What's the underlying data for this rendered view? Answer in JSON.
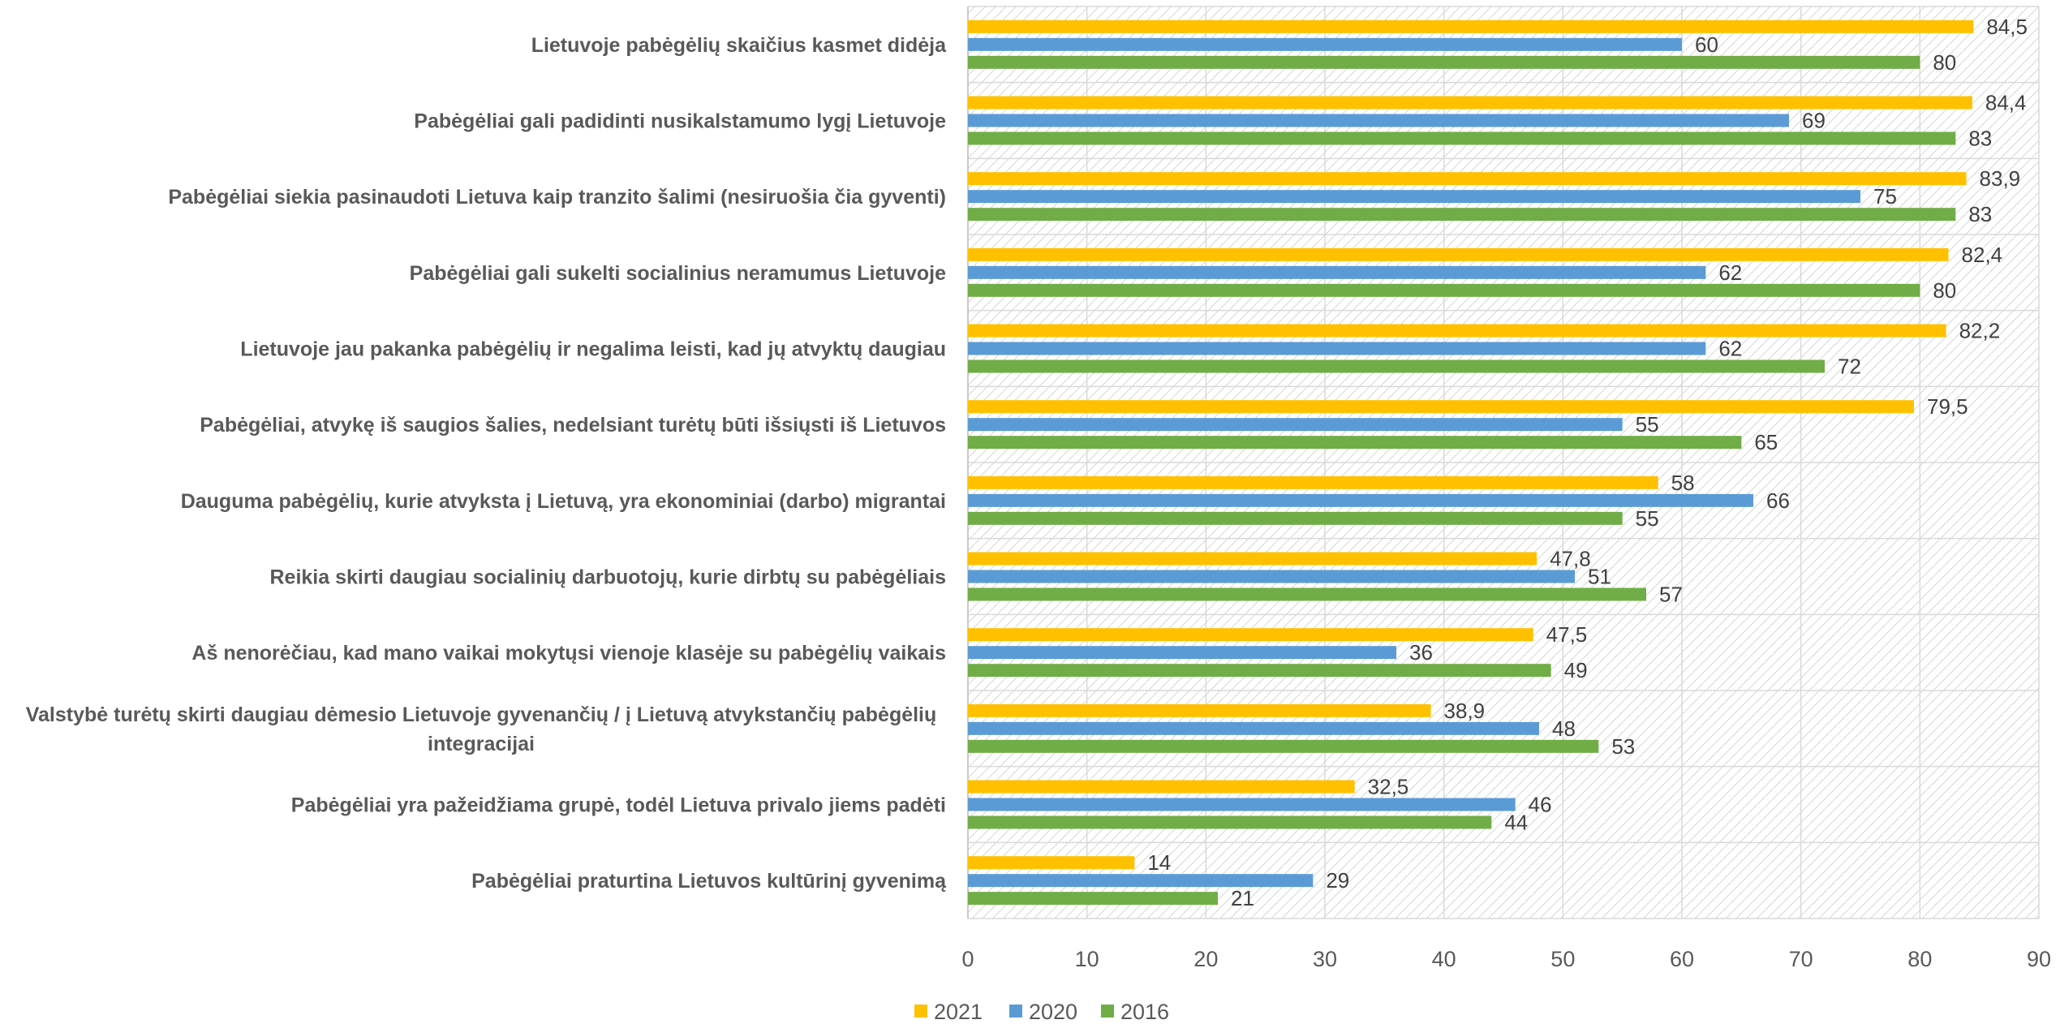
{
  "chart_data": {
    "type": "bar",
    "orientation": "horizontal",
    "categories": [
      "Lietuvoje pabėgėlių skaičius kasmet didėja",
      "Pabėgėliai gali padidinti nusikalstamumo lygį Lietuvoje",
      "Pabėgėliai siekia pasinaudoti Lietuva kaip tranzito šalimi (nesiruošia čia gyventi)",
      "Pabėgėliai gali sukelti socialinius neramumus Lietuvoje",
      "Lietuvoje jau pakanka pabėgėlių ir negalima leisti, kad jų atvyktų daugiau",
      "Pabėgėliai, atvykę iš saugios šalies, nedelsiant turėtų būti išsiųsti iš Lietuvos",
      "Dauguma pabėgėlių, kurie atvyksta į Lietuvą, yra ekonominiai (darbo) migrantai",
      "Reikia skirti daugiau socialinių darbuotojų, kurie dirbtų su pabėgėliais",
      "Aš nenorėčiau, kad mano vaikai mokytųsi vienoje klasėje su pabėgėlių vaikais",
      "Valstybė turėtų skirti daugiau dėmesio Lietuvoje gyvenančių / į Lietuvą atvykstančių pabėgėlių integracijai",
      "Pabėgėliai yra pažeidžiama grupė, todėl Lietuva privalo jiems padėti",
      "Pabėgėliai praturtina Lietuvos kultūrinį gyvenimą"
    ],
    "category_lines": [
      [
        "Lietuvoje pabėgėlių skaičius kasmet didėja"
      ],
      [
        "Pabėgėliai gali padidinti nusikalstamumo lygį Lietuvoje"
      ],
      [
        "Pabėgėliai siekia pasinaudoti Lietuva kaip tranzito šalimi (nesiruošia čia gyventi)"
      ],
      [
        "Pabėgėliai gali sukelti socialinius neramumus Lietuvoje"
      ],
      [
        "Lietuvoje jau pakanka pabėgėlių ir negalima leisti, kad jų atvyktų daugiau"
      ],
      [
        "Pabėgėliai, atvykę iš saugios šalies, nedelsiant turėtų būti išsiųsti iš Lietuvos"
      ],
      [
        "Dauguma pabėgėlių, kurie atvyksta į Lietuvą, yra ekonominiai (darbo) migrantai"
      ],
      [
        "Reikia skirti daugiau socialinių darbuotojų, kurie dirbtų su pabėgėliais"
      ],
      [
        "Aš nenorėčiau, kad mano vaikai mokytųsi vienoje klasėje su pabėgėlių vaikais"
      ],
      [
        "Valstybė turėtų skirti daugiau dėmesio Lietuvoje gyvenančių / į Lietuvą atvykstančių pabėgėlių",
        "integracijai"
      ],
      [
        "Pabėgėliai yra pažeidžiama grupė, todėl Lietuva privalo jiems padėti"
      ],
      [
        "Pabėgėliai praturtina Lietuvos kultūrinį gyvenimą"
      ]
    ],
    "series": [
      {
        "name": "2021",
        "color": "#FFC000",
        "values": [
          84.5,
          84.4,
          83.9,
          82.4,
          82.2,
          79.5,
          58,
          47.8,
          47.5,
          38.9,
          32.5,
          14
        ],
        "labels": [
          "84,5",
          "84,4",
          "83,9",
          "82,4",
          "82,2",
          "79,5",
          "58",
          "47,8",
          "47,5",
          "38,9",
          "32,5",
          "14"
        ]
      },
      {
        "name": "2020",
        "color": "#5B9BD5",
        "values": [
          60,
          69,
          75,
          62,
          62,
          55,
          66,
          51,
          36,
          48,
          46,
          29
        ],
        "labels": [
          "60",
          "69",
          "75",
          "62",
          "62",
          "55",
          "66",
          "51",
          "36",
          "48",
          "46",
          "29"
        ]
      },
      {
        "name": "2016",
        "color": "#70AD47",
        "values": [
          80,
          83,
          83,
          80,
          72,
          65,
          55,
          57,
          49,
          53,
          44,
          21
        ],
        "labels": [
          "80",
          "83",
          "83",
          "80",
          "72",
          "65",
          "55",
          "57",
          "49",
          "53",
          "44",
          "21"
        ]
      }
    ],
    "xlim": [
      0,
      90
    ],
    "xticks": [
      "0",
      "10",
      "20",
      "30",
      "40",
      "50",
      "60",
      "70",
      "80",
      "90"
    ],
    "title": "",
    "xlabel": "",
    "ylabel": "",
    "grid": true,
    "legend_position": "bottom"
  }
}
